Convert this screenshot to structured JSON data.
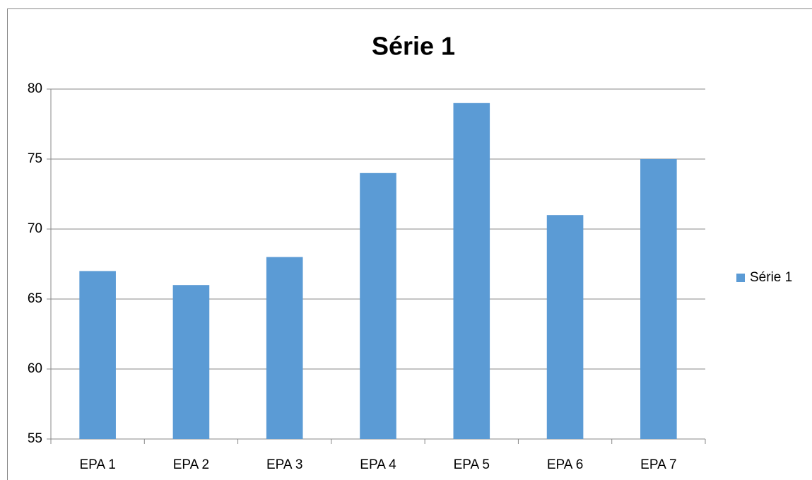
{
  "chart_data": {
    "type": "bar",
    "title": "Série 1",
    "categories": [
      "EPA 1",
      "EPA 2",
      "EPA 3",
      "EPA 4",
      "EPA 5",
      "EPA 6",
      "EPA 7"
    ],
    "series": [
      {
        "name": "Série 1",
        "color": "#5b9bd5",
        "values": [
          67,
          66,
          68,
          74,
          79,
          71,
          75
        ]
      }
    ],
    "ylim": [
      55,
      80
    ],
    "yticks": [
      55,
      60,
      65,
      70,
      75,
      80
    ],
    "grid": true,
    "legend": "right"
  }
}
